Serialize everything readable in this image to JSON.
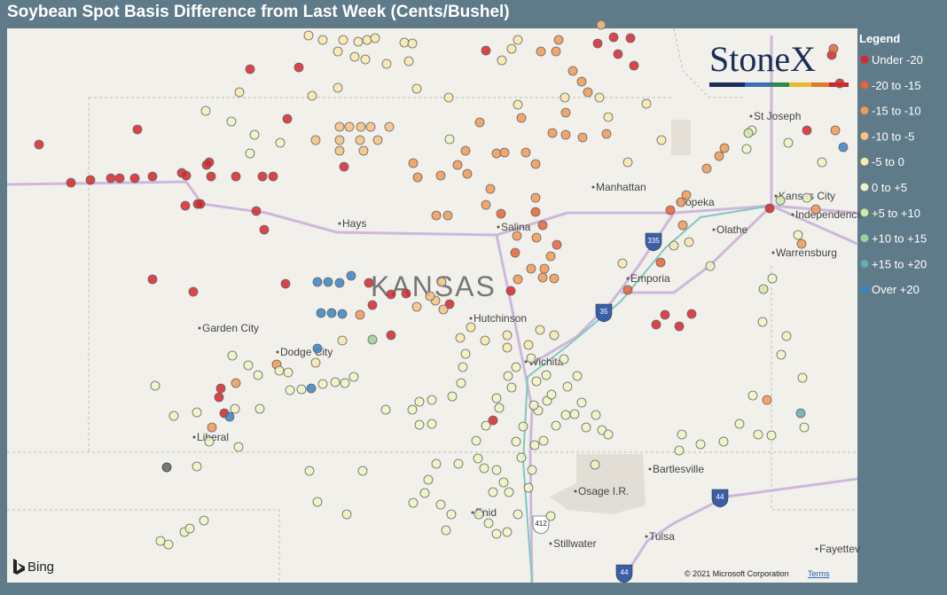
{
  "title": "Soybean Spot Basis Difference from Last Week (Cents/Bushel)",
  "legend": {
    "title": "Legend",
    "items": [
      {
        "label": "Under -20",
        "color": "#d7262c"
      },
      {
        "label": "-20 to -15",
        "color": "#e8623a"
      },
      {
        "label": "-15 to -10",
        "color": "#f19a55"
      },
      {
        "label": "-10 to -5",
        "color": "#f6c283"
      },
      {
        "label": "-5 to 0",
        "color": "#f8e9ae"
      },
      {
        "label": "0 to +5",
        "color": "#eef4c3"
      },
      {
        "label": "+5 to +10",
        "color": "#d2e9aa"
      },
      {
        "label": "+10 to +15",
        "color": "#9ccf9e"
      },
      {
        "label": "+15 to +20",
        "color": "#66acb0"
      },
      {
        "label": "Over +20",
        "color": "#3a83c5"
      }
    ]
  },
  "logo": "StoneX",
  "map": {
    "labels": [
      "Hays",
      "Salina",
      "Manhattan",
      "Topeka",
      "Kansas City",
      "Independence",
      "Olathe",
      "Warrensburg",
      "Emporia",
      "KANSAS",
      "Hutchinson",
      "Wichita",
      "Garden City",
      "Dodge City",
      "Liberal",
      "Bartlesville",
      "Osage I.R.",
      "Enid",
      "Stillwater",
      "Tulsa",
      "Fayettev",
      "St Joseph"
    ],
    "highways": [
      "335",
      "35",
      "412",
      "44",
      "44"
    ]
  },
  "attribution": {
    "provider": "Bing",
    "copyright": "© 2021 Microsoft Corporation",
    "terms": "Terms"
  }
}
